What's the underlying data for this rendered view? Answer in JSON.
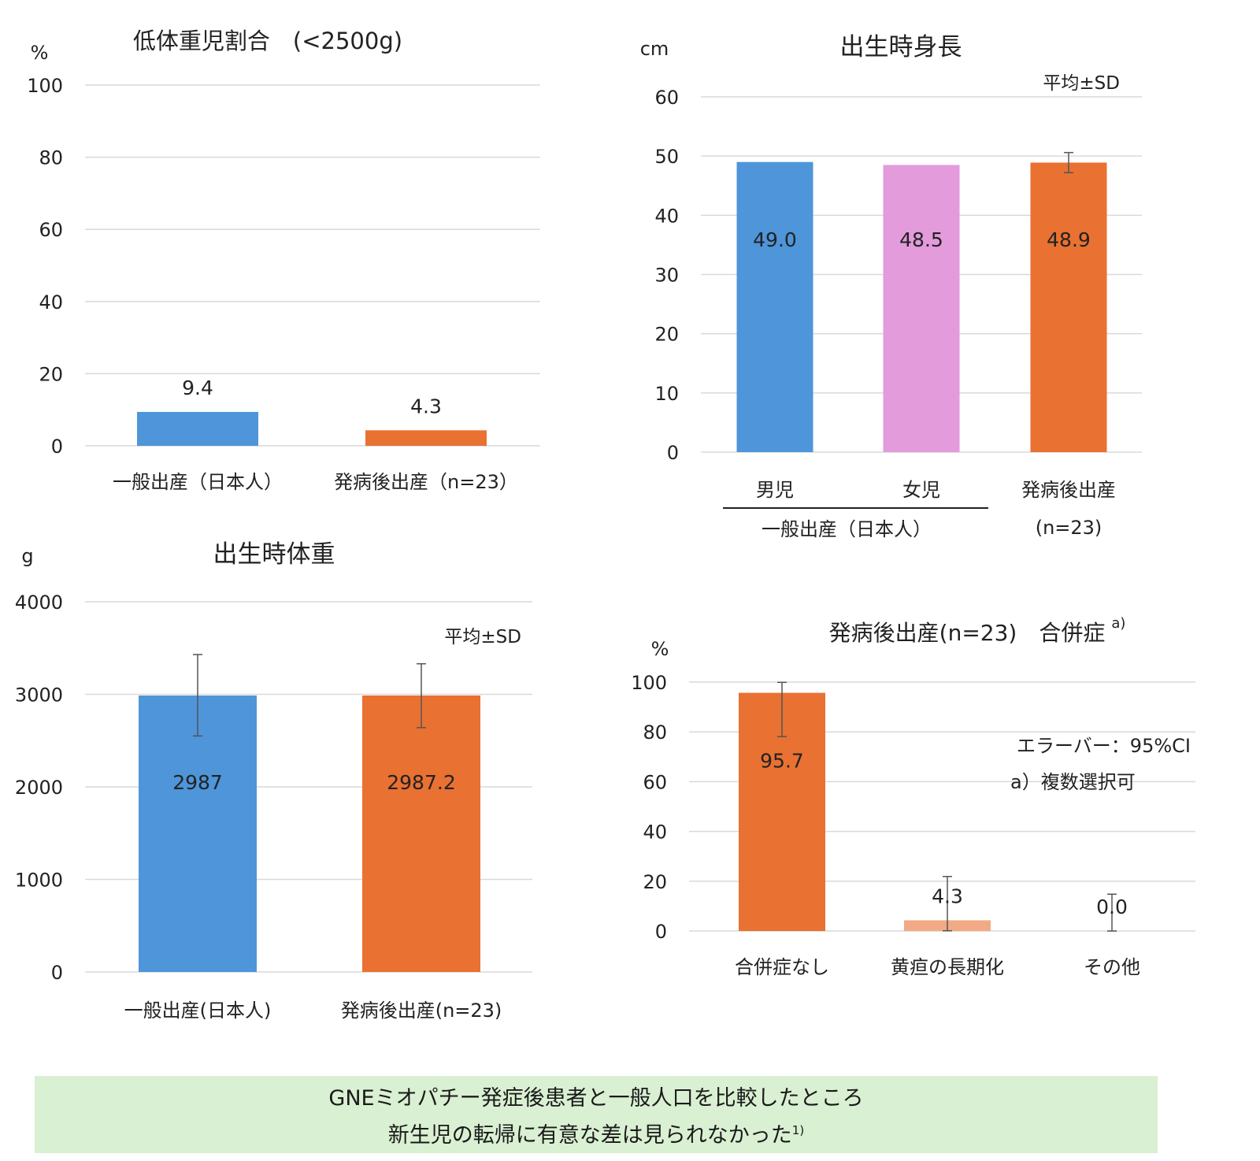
{
  "chart_data": [
    {
      "id": "low-birth-weight",
      "type": "bar",
      "title": "低体重児割合　(<2500g)",
      "unit": "%",
      "ylim": [
        0,
        100
      ],
      "yticks": [
        0,
        20,
        40,
        60,
        80,
        100
      ],
      "grid": true,
      "categories": [
        "一般出産（日本人）",
        "発病後出産（n=23）"
      ],
      "values": [
        9.4,
        4.3
      ],
      "data_labels": [
        "9.4",
        "4.3"
      ],
      "colors": [
        "#4e95d9",
        "#e97132"
      ]
    },
    {
      "id": "birth-length",
      "type": "bar",
      "title": "出生時身長",
      "unit": "cm",
      "note": "平均±SD",
      "ylim": [
        0,
        60
      ],
      "yticks": [
        0,
        10,
        20,
        30,
        40,
        50,
        60
      ],
      "grid": true,
      "categories": [
        "男児",
        "女児",
        "発病後出産"
      ],
      "category_sublabels": [
        "",
        "",
        "(n=23)"
      ],
      "group_label": "一般出産（日本人）",
      "values": [
        49.0,
        48.5,
        48.9
      ],
      "data_labels": [
        "49.0",
        "48.5",
        "48.9"
      ],
      "error_low": [
        null,
        null,
        47.2
      ],
      "error_high": [
        null,
        null,
        50.6
      ],
      "colors": [
        "#4e95d9",
        "#e39bdc",
        "#e97132"
      ]
    },
    {
      "id": "birth-weight",
      "type": "bar",
      "title": "出生時体重",
      "unit": "g",
      "note": "平均±SD",
      "ylim": [
        0,
        4000
      ],
      "yticks": [
        0,
        1000,
        2000,
        3000,
        4000
      ],
      "grid": true,
      "categories": [
        "一般出産(日本人)",
        "発病後出産(n=23)"
      ],
      "values": [
        2987,
        2987.2
      ],
      "data_labels": [
        "2987",
        "2987.2"
      ],
      "error_low": [
        2550,
        2640
      ],
      "error_high": [
        3430,
        3330
      ],
      "colors": [
        "#4e95d9",
        "#e97132"
      ]
    },
    {
      "id": "complications",
      "type": "bar",
      "title": "発病後出産(n=23)　合併症",
      "title_superscript": "a)",
      "unit": "%",
      "ylim": [
        0,
        100
      ],
      "yticks": [
        0,
        20,
        40,
        60,
        80,
        100
      ],
      "grid": true,
      "categories": [
        "合併症なし",
        "黄疸の長期化",
        "その他"
      ],
      "values": [
        95.7,
        4.3,
        0.0
      ],
      "data_labels": [
        "95.7",
        "4.3",
        "0.0"
      ],
      "error_low": [
        78.1,
        0.1,
        0.0
      ],
      "error_high": [
        99.9,
        21.9,
        14.8
      ],
      "colors": [
        "#e97132",
        "#f2aa84",
        "#e97132"
      ],
      "notes": [
        "エラーバー：95%CI",
        "a）複数選択可"
      ]
    }
  ],
  "summary": {
    "line1": "GNEミオパチー発症後患者と一般人口を比較したところ",
    "line2": "新生児の転帰に有意な差は見られなかった",
    "ref": "1)"
  }
}
